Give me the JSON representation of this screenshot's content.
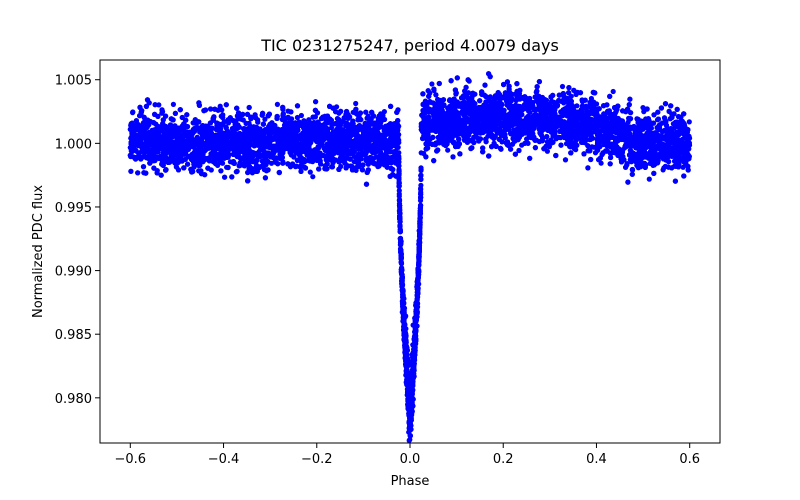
{
  "chart_data": {
    "type": "scatter",
    "title": "TIC 0231275247, period 4.0079 days",
    "xlabel": "Phase",
    "ylabel": "Normalized PDC flux",
    "xlim": [
      -0.665,
      0.665
    ],
    "ylim": [
      0.97645,
      1.00655
    ],
    "xticks": [
      -0.6,
      -0.4,
      -0.2,
      0.0,
      0.2,
      0.4,
      0.6
    ],
    "xtick_labels": [
      "−0.6",
      "−0.4",
      "−0.2",
      "0.0",
      "0.2",
      "0.4",
      "0.6"
    ],
    "yticks": [
      0.98,
      0.985,
      0.99,
      0.995,
      1.0,
      1.005
    ],
    "ytick_labels": [
      "0.980",
      "0.985",
      "0.990",
      "0.995",
      "1.000",
      "1.005"
    ],
    "grid": false,
    "series": [
      {
        "name": "PDC flux",
        "color": "#0000ff",
        "marker_radius": 2.6,
        "n_points": 9000,
        "phase_range": [
          -0.6,
          0.6
        ],
        "baseline_noise_sigma": 0.0011,
        "transit": {
          "center_phase": 0.0,
          "half_width_phase": 0.024,
          "min_flux": 0.9785,
          "bottom_spread": 0.0012
        },
        "envelope": [
          {
            "phase": -0.6,
            "flux": 1.0003
          },
          {
            "phase": -0.5,
            "flux": 0.9999
          },
          {
            "phase": -0.4,
            "flux": 1.0001
          },
          {
            "phase": -0.3,
            "flux": 1.0002
          },
          {
            "phase": -0.2,
            "flux": 1.0002
          },
          {
            "phase": -0.1,
            "flux": 1.0001
          },
          {
            "phase": -0.03,
            "flux": 1.0
          },
          {
            "phase": 0.03,
            "flux": 1.0015
          },
          {
            "phase": 0.1,
            "flux": 1.0018
          },
          {
            "phase": 0.2,
            "flux": 1.0022
          },
          {
            "phase": 0.3,
            "flux": 1.0019
          },
          {
            "phase": 0.4,
            "flux": 1.0013
          },
          {
            "phase": 0.5,
            "flux": 0.9999
          },
          {
            "phase": 0.6,
            "flux": 1.0002
          }
        ]
      }
    ]
  }
}
